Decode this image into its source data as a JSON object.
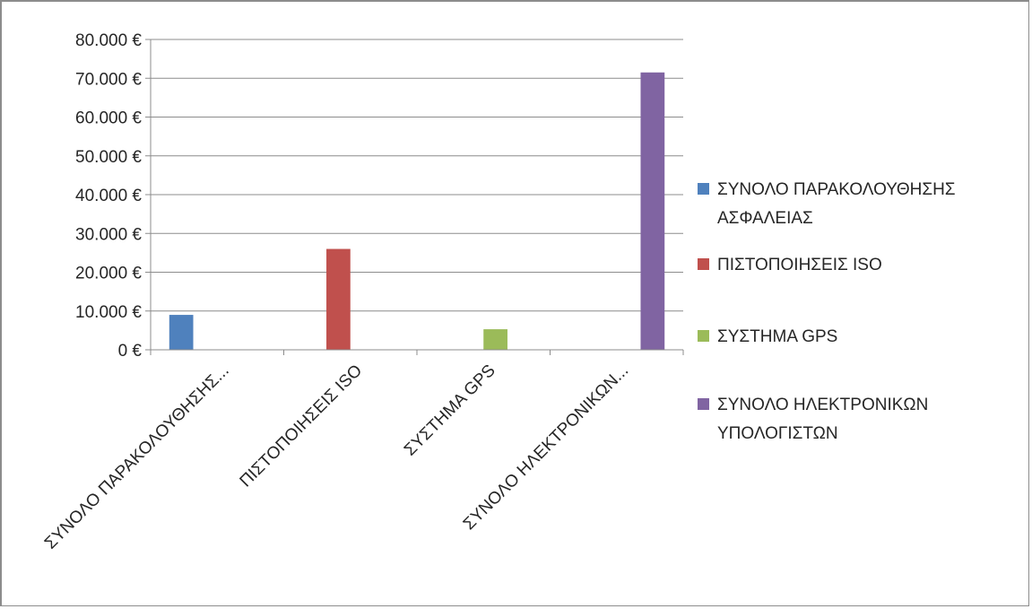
{
  "chart_data": {
    "type": "bar",
    "categories": [
      "ΣΥΝΟΛΟ ΠΑΡΑΚΟΛΟΥΘΗΣΗΣ...",
      "ΠΙΣΤΟΠΟΙΗΣΕΙΣ ISO",
      "ΣΥΣΤΗΜΑ GPS",
      "ΣΥΝΟΛΟ ΗΛΕΚΤΡΟΝΙΚΩΝ..."
    ],
    "series": [
      {
        "name": "ΣΥΝΟΛΟ ΠΑΡΑΚΟΛΟΥΘΗΣΗΣ ΑΣΦΑΛΕΙΑΣ",
        "legend_lines": [
          "ΣΥΝΟΛΟ ΠΑΡΑΚΟΛΟΥΘΗΣΗΣ",
          "ΑΣΦΑΛΕΙΑΣ"
        ],
        "color": "#4f81bd",
        "values": [
          9000,
          null,
          null,
          null
        ]
      },
      {
        "name": "ΠΙΣΤΟΠΟΙΗΣΕΙΣ ISO",
        "legend_lines": [
          "ΠΙΣΤΟΠΟΙΗΣΕΙΣ ISO"
        ],
        "color": "#c0504d",
        "values": [
          null,
          26000,
          null,
          null
        ]
      },
      {
        "name": "ΣΥΣΤΗΜΑ GPS",
        "legend_lines": [
          "ΣΥΣΤΗΜΑ GPS"
        ],
        "color": "#9bbb59",
        "values": [
          null,
          null,
          5300,
          null
        ]
      },
      {
        "name": "ΣΥΝΟΛΟ ΗΛΕΚΤΡΟΝΙΚΩΝ ΥΠΟΛΟΓΙΣΤΩΝ",
        "legend_lines": [
          "ΣΥΝΟΛΟ ΗΛΕΚΤΡΟΝΙΚΩΝ",
          "ΥΠΟΛΟΓΙΣΤΩΝ"
        ],
        "color": "#8064a2",
        "values": [
          null,
          null,
          null,
          71500
        ]
      }
    ],
    "y_ticks": [
      "0 €",
      "10.000 €",
      "20.000 €",
      "30.000 €",
      "40.000 €",
      "50.000 €",
      "60.000 €",
      "70.000 €",
      "80.000 €"
    ],
    "ylim": [
      0,
      80000
    ],
    "grid": true,
    "legend_position": "right",
    "title": "",
    "xlabel": "",
    "ylabel": ""
  }
}
